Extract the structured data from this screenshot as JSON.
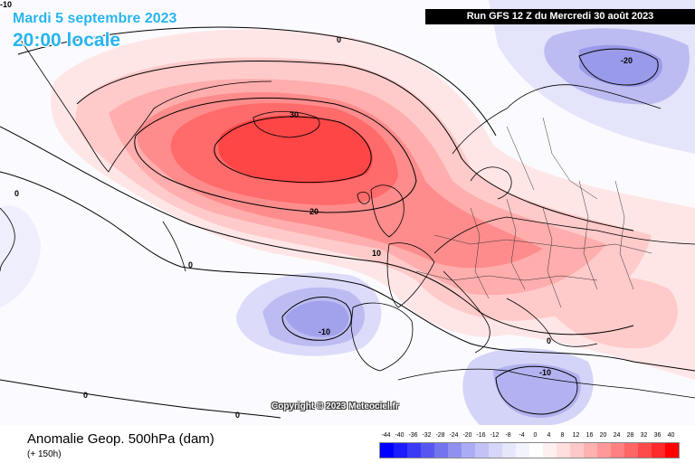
{
  "header": {
    "date": "Mardi 5 septembre 2023",
    "time": "20:00 locale",
    "run": "Run GFS 12 Z du Mercredi 30 août 2023",
    "corner_value": "-10"
  },
  "map": {
    "copyright": "Copyright © 2023 Meteociel.fr",
    "contour_labels": [
      "0",
      "30",
      "20",
      "10",
      "0",
      "0",
      "-10",
      "-10",
      "0",
      "0",
      "-20",
      "0"
    ]
  },
  "footer": {
    "caption": "Anomalie Geop. 500hPa (dam)",
    "subcaption": "(+ 150h)"
  },
  "legend": {
    "ticks": [
      "-44",
      "-40",
      "-36",
      "-32",
      "-28",
      "-24",
      "-20",
      "-16",
      "-12",
      "-8",
      "-4",
      "0",
      "4",
      "8",
      "12",
      "16",
      "20",
      "24",
      "28",
      "32",
      "36",
      "40"
    ],
    "colors": [
      "#0000ff",
      "#1c1cff",
      "#3a3af5",
      "#5757f0",
      "#7474ee",
      "#9090f0",
      "#acacf4",
      "#c2c2f7",
      "#d6d6fa",
      "#e7e7fc",
      "#f3f3fe",
      "#ffffff",
      "#fff0f0",
      "#ffdede",
      "#ffc8c8",
      "#ffb0b0",
      "#ff9898",
      "#ff8080",
      "#ff6666",
      "#ff4a4a",
      "#ff2a2a",
      "#ff0000"
    ]
  }
}
